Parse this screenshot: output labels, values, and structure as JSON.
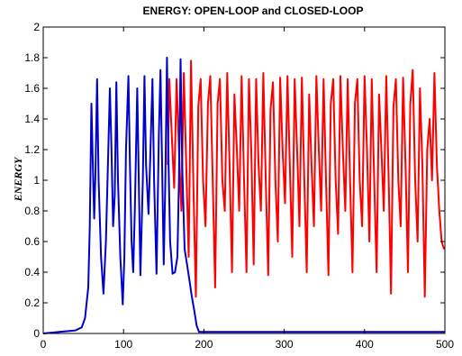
{
  "chart_data": {
    "type": "line",
    "title": "ENERGY: OPEN-LOOP and CLOSED-LOOP",
    "xlabel": "",
    "ylabel": "ENERGY",
    "xlim": [
      0,
      500
    ],
    "ylim": [
      0,
      2
    ],
    "xticks": [
      0,
      100,
      200,
      300,
      400,
      500
    ],
    "xtick_labels": [
      "0",
      "100",
      "200",
      "300",
      "400",
      "500"
    ],
    "yticks": [
      0,
      0.2,
      0.4,
      0.6,
      0.8,
      1,
      1.2,
      1.4,
      1.6,
      1.8,
      2
    ],
    "ytick_labels": [
      "0",
      "0.2",
      "0.4",
      "0.6",
      "0.8",
      "1",
      "1.2",
      "1.4",
      "1.6",
      "1.8",
      "2"
    ],
    "grid": false,
    "legend": "none",
    "series": [
      {
        "color": "#ff0000",
        "points": [
          [
            155,
            1.1
          ],
          [
            157,
            1.66
          ],
          [
            160,
            1.3
          ],
          [
            163,
            0.95
          ],
          [
            166,
            1.66
          ],
          [
            169,
            1.2
          ],
          [
            172,
            0.8
          ],
          [
            175,
            1.7
          ],
          [
            178,
            1.1
          ],
          [
            181,
            0.5
          ],
          [
            184,
            1.78
          ],
          [
            187,
            0.95
          ],
          [
            190,
            0.24
          ],
          [
            193,
            1.48
          ],
          [
            196,
            1.66
          ],
          [
            199,
            1.0
          ],
          [
            202,
            0.7
          ],
          [
            205,
            1.5
          ],
          [
            208,
            1.68
          ],
          [
            211,
            1.0
          ],
          [
            214,
            0.3
          ],
          [
            217,
            1.5
          ],
          [
            220,
            1.66
          ],
          [
            223,
            1.0
          ],
          [
            226,
            0.8
          ],
          [
            229,
            1.7
          ],
          [
            232,
            1.1
          ],
          [
            235,
            0.4
          ],
          [
            238,
            1.56
          ],
          [
            241,
            1.2
          ],
          [
            244,
            0.8
          ],
          [
            247,
            1.68
          ],
          [
            250,
            1.0
          ],
          [
            253,
            0.4
          ],
          [
            256,
            1.66
          ],
          [
            259,
            1.2
          ],
          [
            262,
            0.45
          ],
          [
            265,
            1.66
          ],
          [
            268,
            1.1
          ],
          [
            271,
            0.8
          ],
          [
            274,
            1.7
          ],
          [
            277,
            1.0
          ],
          [
            280,
            0.38
          ],
          [
            283,
            1.46
          ],
          [
            286,
            1.64
          ],
          [
            289,
            1.0
          ],
          [
            292,
            0.6
          ],
          [
            295,
            1.67
          ],
          [
            298,
            1.2
          ],
          [
            301,
            0.85
          ],
          [
            304,
            1.68
          ],
          [
            307,
            1.1
          ],
          [
            310,
            0.5
          ],
          [
            313,
            1.66
          ],
          [
            316,
            1.2
          ],
          [
            319,
            0.7
          ],
          [
            322,
            1.67
          ],
          [
            325,
            1.0
          ],
          [
            328,
            0.4
          ],
          [
            331,
            1.56
          ],
          [
            334,
            1.1
          ],
          [
            337,
            0.7
          ],
          [
            340,
            1.68
          ],
          [
            343,
            1.2
          ],
          [
            346,
            0.8
          ],
          [
            349,
            1.66
          ],
          [
            352,
            1.0
          ],
          [
            355,
            0.38
          ],
          [
            358,
            1.5
          ],
          [
            361,
            1.66
          ],
          [
            364,
            1.0
          ],
          [
            367,
            0.65
          ],
          [
            370,
            1.68
          ],
          [
            373,
            1.2
          ],
          [
            376,
            0.8
          ],
          [
            379,
            1.66
          ],
          [
            382,
            1.0
          ],
          [
            385,
            0.4
          ],
          [
            388,
            1.5
          ],
          [
            391,
            1.66
          ],
          [
            394,
            1.0
          ],
          [
            397,
            0.7
          ],
          [
            400,
            1.68
          ],
          [
            403,
            1.2
          ],
          [
            406,
            0.6
          ],
          [
            409,
            1.66
          ],
          [
            412,
            1.0
          ],
          [
            415,
            0.4
          ],
          [
            418,
            1.56
          ],
          [
            421,
            1.2
          ],
          [
            424,
            0.8
          ],
          [
            427,
            1.68
          ],
          [
            430,
            1.0
          ],
          [
            433,
            0.26
          ],
          [
            436,
            1.48
          ],
          [
            439,
            1.66
          ],
          [
            442,
            1.0
          ],
          [
            445,
            0.7
          ],
          [
            448,
            1.67
          ],
          [
            451,
            1.1
          ],
          [
            454,
            0.4
          ],
          [
            457,
            1.5
          ],
          [
            460,
            1.72
          ],
          [
            463,
            1.0
          ],
          [
            466,
            0.6
          ],
          [
            469,
            1.6
          ],
          [
            472,
            1.1
          ],
          [
            475,
            0.24
          ],
          [
            478,
            1.2
          ],
          [
            481,
            1.4
          ],
          [
            484,
            1.0
          ],
          [
            487,
            1.7
          ],
          [
            490,
            1.1
          ],
          [
            493,
            0.8
          ],
          [
            496,
            0.6
          ],
          [
            499,
            0.55
          ]
        ]
      },
      {
        "color": "#0000cc",
        "points": [
          [
            0,
            0
          ],
          [
            20,
            0.01
          ],
          [
            40,
            0.02
          ],
          [
            48,
            0.04
          ],
          [
            52,
            0.1
          ],
          [
            56,
            0.3
          ],
          [
            58,
            0.7
          ],
          [
            60,
            1.5
          ],
          [
            62,
            1.05
          ],
          [
            63.5,
            0.75
          ],
          [
            65,
            1.05
          ],
          [
            67,
            1.66
          ],
          [
            69,
            1.0
          ],
          [
            72,
            0.5
          ],
          [
            75,
            0.26
          ],
          [
            78,
            0.6
          ],
          [
            80,
            1.0
          ],
          [
            83,
            1.6
          ],
          [
            85,
            1.2
          ],
          [
            87,
            0.7
          ],
          [
            89,
            0.9
          ],
          [
            91,
            1.64
          ],
          [
            93,
            1.0
          ],
          [
            96,
            0.5
          ],
          [
            99,
            0.19
          ],
          [
            101,
            0.5
          ],
          [
            103,
            1.2
          ],
          [
            106,
            1.68
          ],
          [
            108,
            1.1
          ],
          [
            110,
            0.6
          ],
          [
            112,
            0.4
          ],
          [
            114,
            0.8
          ],
          [
            117,
            1.6
          ],
          [
            119,
            1.0
          ],
          [
            121,
            0.38
          ],
          [
            124,
            1.0
          ],
          [
            126,
            1.68
          ],
          [
            128,
            1.1
          ],
          [
            131,
            0.78
          ],
          [
            133,
            1.1
          ],
          [
            136,
            1.66
          ],
          [
            138,
            1.0
          ],
          [
            141,
            0.39
          ],
          [
            144,
            1.3
          ],
          [
            146,
            1.72
          ],
          [
            148,
            1.1
          ],
          [
            150,
            0.45
          ],
          [
            152,
            1.0
          ],
          [
            154,
            1.8
          ],
          [
            156,
            1.1
          ],
          [
            158,
            0.6
          ],
          [
            161,
            0.39
          ],
          [
            164,
            0.4
          ],
          [
            167,
            0.5
          ],
          [
            169,
            1.0
          ],
          [
            171,
            1.79
          ],
          [
            173,
            1.1
          ],
          [
            176,
            0.55
          ],
          [
            179,
            0.45
          ],
          [
            182,
            0.35
          ],
          [
            185,
            0.24
          ],
          [
            188,
            0.15
          ],
          [
            191,
            0.05
          ],
          [
            194,
            0.01
          ],
          [
            200,
            0.01
          ],
          [
            300,
            0.01
          ],
          [
            400,
            0.01
          ],
          [
            500,
            0.01
          ]
        ]
      }
    ]
  }
}
